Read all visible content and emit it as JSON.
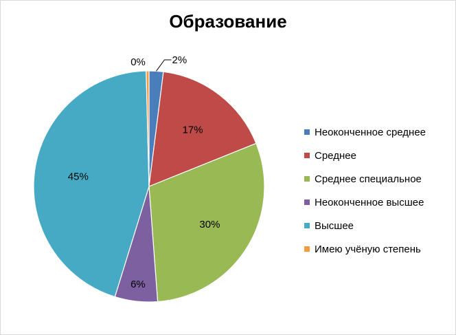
{
  "chart_data": {
    "type": "pie",
    "title": "Образование",
    "categories": [
      "Неоконченное среднее",
      "Среднее",
      "Среднее специальное",
      "Неоконченное высшее",
      "Высшее",
      "Имею учёную степень"
    ],
    "values": [
      2,
      17,
      30,
      6,
      45,
      0.4
    ],
    "value_labels": [
      "2%",
      "17%",
      "30%",
      "6%",
      "45%",
      "0%"
    ],
    "colors": [
      "#4a7ebb",
      "#be4b48",
      "#98b954",
      "#7d60a0",
      "#46aac4",
      "#f49b3f"
    ],
    "legend_position": "right"
  }
}
